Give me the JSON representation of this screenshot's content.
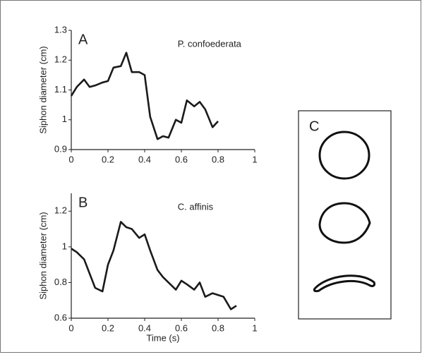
{
  "chart_data": [
    {
      "type": "line",
      "panel_label": "A",
      "annotation": "P. confoederata",
      "ylabel": "Siphon diameter (cm)",
      "xlim": [
        0,
        1
      ],
      "xticks": [
        0,
        0.2,
        0.4,
        0.6,
        0.8,
        1
      ],
      "ylim": [
        0.9,
        1.3
      ],
      "yticks": [
        0.9,
        1,
        1.1,
        1.2,
        1.3
      ],
      "x": [
        0,
        0.03,
        0.07,
        0.1,
        0.13,
        0.17,
        0.2,
        0.23,
        0.27,
        0.3,
        0.33,
        0.37,
        0.4,
        0.43,
        0.47,
        0.5,
        0.53,
        0.57,
        0.6,
        0.63,
        0.67,
        0.7,
        0.73,
        0.77,
        0.8
      ],
      "values": [
        1.08,
        1.11,
        1.135,
        1.11,
        1.115,
        1.125,
        1.13,
        1.175,
        1.18,
        1.225,
        1.16,
        1.16,
        1.15,
        1.01,
        0.935,
        0.945,
        0.94,
        1.0,
        0.99,
        1.065,
        1.045,
        1.06,
        1.035,
        0.975,
        0.995
      ],
      "color": "#1a1a1a"
    },
    {
      "type": "line",
      "panel_label": "B",
      "annotation": "C. affinis",
      "ylabel": "Siphon diameter (cm)",
      "xlabel": "Time (s)",
      "xlim": [
        0,
        1
      ],
      "xticks": [
        0,
        0.2,
        0.4,
        0.6,
        0.8,
        1
      ],
      "ylim": [
        0.6,
        1.3
      ],
      "yticks": [
        0.6,
        0.8,
        1,
        1.2
      ],
      "x": [
        0,
        0.03,
        0.07,
        0.1,
        0.13,
        0.17,
        0.2,
        0.23,
        0.27,
        0.3,
        0.33,
        0.37,
        0.4,
        0.43,
        0.47,
        0.5,
        0.53,
        0.57,
        0.6,
        0.63,
        0.67,
        0.7,
        0.73,
        0.77,
        0.8,
        0.83,
        0.87,
        0.9
      ],
      "values": [
        0.99,
        0.97,
        0.93,
        0.85,
        0.77,
        0.75,
        0.9,
        0.98,
        1.14,
        1.11,
        1.1,
        1.05,
        1.07,
        0.98,
        0.87,
        0.83,
        0.8,
        0.76,
        0.81,
        0.79,
        0.76,
        0.8,
        0.72,
        0.74,
        0.73,
        0.72,
        0.65,
        0.67
      ],
      "color": "#1a1a1a"
    }
  ],
  "panel_c": {
    "label": "C"
  }
}
